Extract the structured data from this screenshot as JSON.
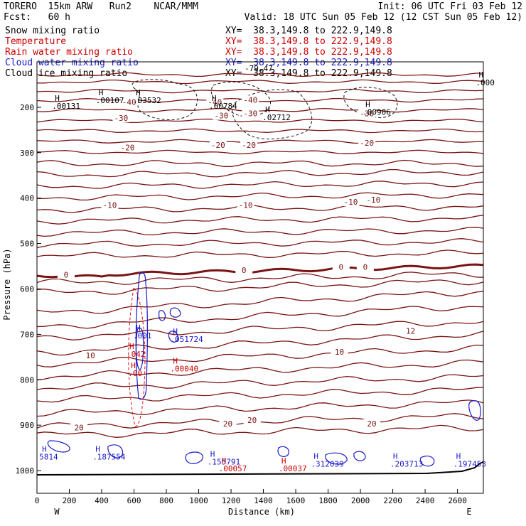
{
  "header": {
    "left_line1": "TORERO  15km ARW   Run2    NCAR/MMM",
    "left_line2": "Fcst:   60 h",
    "init": "Init: 06 UTC Fri 03 Feb 12",
    "valid": "Valid: 18 UTC Sun 05 Feb 12 (12 CST Sun 05 Feb 12)"
  },
  "fields": [
    {
      "name": "Snow mixing ratio",
      "xy": "XY=  38.3,149.8 to 222.9,149.8",
      "color": "#000000"
    },
    {
      "name": "Temperature",
      "xy": "XY=  38.3,149.8 to 222.9,149.8",
      "color": "#cc0000"
    },
    {
      "name": "Rain water mixing ratio",
      "xy": "XY=  38.3,149.8 to 222.9,149.8",
      "color": "#cc0000"
    },
    {
      "name": "Cloud water mixing ratio",
      "xy": "XY=  38.3,149.8 to 222.9,149.8",
      "color": "#1a1acc"
    },
    {
      "name": "Cloud ice mixing ratio",
      "xy": "XY=  38.3,149.8 to 222.9,149.8",
      "color": "#000000"
    }
  ],
  "chart_data": {
    "type": "contour-cross-section",
    "xlabel": "Distance (km)",
    "ylabel": "Pressure (hPa)",
    "xlim": [
      0,
      2760
    ],
    "ylim": [
      1050,
      100
    ],
    "x_ticks": [
      0,
      200,
      400,
      600,
      800,
      1000,
      1200,
      1400,
      1600,
      1800,
      2000,
      2200,
      2400,
      2600
    ],
    "y_ticks": [
      200,
      300,
      400,
      500,
      600,
      700,
      800,
      900,
      1000
    ],
    "x_end_left": "W",
    "x_end_right": "E",
    "temperature_contour_labels": [
      {
        "text": "-40",
        "x": 570,
        "p": 190
      },
      {
        "text": "-40",
        "x": 1100,
        "p": 190
      },
      {
        "text": "-40",
        "x": 1320,
        "p": 185
      },
      {
        "text": "-30",
        "x": 520,
        "p": 225
      },
      {
        "text": "-30",
        "x": 1140,
        "p": 220
      },
      {
        "text": "-30",
        "x": 1320,
        "p": 215
      },
      {
        "text": "-30",
        "x": 2040,
        "p": 215
      },
      {
        "text": "-20",
        "x": 560,
        "p": 290
      },
      {
        "text": "-20",
        "x": 1120,
        "p": 285
      },
      {
        "text": "-20",
        "x": 1310,
        "p": 285
      },
      {
        "text": "-20",
        "x": 2040,
        "p": 280
      },
      {
        "text": "-10",
        "x": 450,
        "p": 417
      },
      {
        "text": "-10",
        "x": 1290,
        "p": 417
      },
      {
        "text": "-10",
        "x": 1940,
        "p": 410
      },
      {
        "text": "-10",
        "x": 2080,
        "p": 405
      },
      {
        "text": "0",
        "x": 180,
        "p": 570
      },
      {
        "text": "0",
        "x": 1280,
        "p": 560
      },
      {
        "text": "0",
        "x": 1880,
        "p": 553
      },
      {
        "text": "0",
        "x": 2030,
        "p": 553
      },
      {
        "text": "10",
        "x": 330,
        "p": 748
      },
      {
        "text": "10",
        "x": 1870,
        "p": 740
      },
      {
        "text": "12",
        "x": 2310,
        "p": 694
      },
      {
        "text": "20",
        "x": 260,
        "p": 907
      },
      {
        "text": "20",
        "x": 1180,
        "p": 898
      },
      {
        "text": "20",
        "x": 1330,
        "p": 890
      },
      {
        "text": "20",
        "x": 2070,
        "p": 898
      }
    ],
    "maxima_labels": [
      {
        "text": ".00131",
        "x": 120,
        "p": 202,
        "color": "#000000"
      },
      {
        "text": ".00107",
        "x": 390,
        "p": 189,
        "color": "#000000"
      },
      {
        "text": ".03532",
        "x": 620,
        "p": 189,
        "color": "#000000"
      },
      {
        "text": ".00784",
        "x": 1090,
        "p": 202,
        "color": "#000000"
      },
      {
        "text": ".02712",
        "x": 1420,
        "p": 227,
        "color": "#000000"
      },
      {
        "text": ".00906",
        "x": 2040,
        "p": 215,
        "color": "#000000"
      },
      {
        "text": ".000",
        "x": 2740,
        "p": 150,
        "color": "#000000"
      },
      {
        "text": ".001",
        "x": 620,
        "p": 707,
        "color": "#1a1acc"
      },
      {
        "text": ".051724",
        "x": 850,
        "p": 715,
        "color": "#1a1acc"
      },
      {
        "text": ".042",
        "x": 580,
        "p": 748,
        "color": "#cc0000"
      },
      {
        "text": ".00040",
        "x": 850,
        "p": 780,
        "color": "#cc0000"
      },
      {
        "text": ".00",
        "x": 590,
        "p": 790,
        "color": "#cc0000"
      },
      {
        "text": ".187554",
        "x": 370,
        "p": 974,
        "color": "#1a1acc"
      },
      {
        "text": "5814",
        "x": 40,
        "p": 974,
        "color": "#1a1acc"
      },
      {
        "text": ".155791",
        "x": 1080,
        "p": 985,
        "color": "#1a1acc"
      },
      {
        "text": ".00057",
        "x": 1150,
        "p": 1000,
        "color": "#cc0000"
      },
      {
        "text": ".00037",
        "x": 1520,
        "p": 1000,
        "color": "#cc0000"
      },
      {
        "text": ".312039",
        "x": 1720,
        "p": 990,
        "color": "#1a1acc"
      },
      {
        "text": ".203713",
        "x": 2210,
        "p": 990,
        "color": "#1a1acc"
      },
      {
        "text": ".197453",
        "x": 2600,
        "p": 990,
        "color": "#1a1acc"
      }
    ],
    "overlap_text": "-79.47"
  }
}
